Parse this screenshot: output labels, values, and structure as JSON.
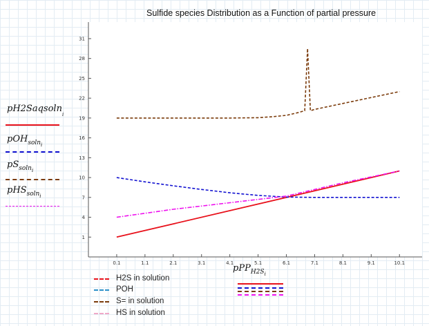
{
  "chart_data": {
    "type": "line",
    "title": "Sulfide species Distribution as a Function of partial pressure",
    "xlabel": {
      "main": "pPP",
      "sub": "H2S",
      "subsub": "i"
    },
    "ylabels": [
      {
        "main": "pH2Saqsoln",
        "sub": "",
        "subsub": "i"
      },
      {
        "main": "pOH",
        "sub": "soln",
        "subsub": "i"
      },
      {
        "main": "pS",
        "sub": "soln",
        "subsub": "i"
      },
      {
        "main": "pHS",
        "sub": "soln",
        "subsub": "i"
      }
    ],
    "xlim": [
      -0.9,
      10.9
    ],
    "ylim": [
      -2,
      33.5
    ],
    "x_ticks": [
      "0.1",
      "1.1",
      "2.1",
      "3.1",
      "4.1",
      "5.1",
      "6.1",
      "7.1",
      "8.1",
      "9.1",
      "10.1"
    ],
    "y_ticks": [
      "1",
      "4",
      "7",
      "10",
      "13",
      "16",
      "19",
      "22",
      "25",
      "28",
      "31"
    ],
    "legend": {
      "placement": "bottom-left",
      "entries": [
        "H2S in solution",
        "POH",
        "S= in solution",
        "HS in solution"
      ]
    },
    "series": [
      {
        "name": "H2S in solution",
        "color": "#e8101a",
        "dash": "solid",
        "x": [
          0.1,
          10.1
        ],
        "y": [
          1,
          11
        ]
      },
      {
        "name": "POH",
        "color": "#1010d0",
        "dash": "dashed",
        "x": [
          0.1,
          1.1,
          2.1,
          3.1,
          4.1,
          5.1,
          6.1,
          7.1,
          8.1,
          9.1,
          10.1
        ],
        "y": [
          10,
          9.35,
          8.75,
          8.2,
          7.7,
          7.3,
          7.05,
          7.0,
          7.0,
          7.0,
          7.0
        ]
      },
      {
        "name": "S= in solution",
        "color": "#7a3a0a",
        "dash": "dashed",
        "x": [
          0.1,
          1.1,
          2.1,
          3.1,
          4.1,
          5.1,
          5.6,
          6.1,
          6.5,
          6.75,
          6.85,
          6.95,
          7.1,
          8.1,
          9.1,
          10.1
        ],
        "y": [
          19,
          19,
          19,
          19,
          19,
          19.05,
          19.2,
          19.4,
          19.8,
          20.1,
          29.5,
          20.1,
          20.3,
          21.2,
          22.1,
          23
        ]
      },
      {
        "name": "HS in solution",
        "color": "#ee10ee",
        "dash": "dashdot",
        "x": [
          0.1,
          1.1,
          2.1,
          3.1,
          4.1,
          5.1,
          6.1,
          7.1,
          8.1,
          9.1,
          10.1
        ],
        "y": [
          4,
          4.6,
          5.2,
          5.7,
          6.2,
          6.7,
          7.2,
          8.2,
          9.2,
          10.1,
          11
        ]
      }
    ]
  }
}
